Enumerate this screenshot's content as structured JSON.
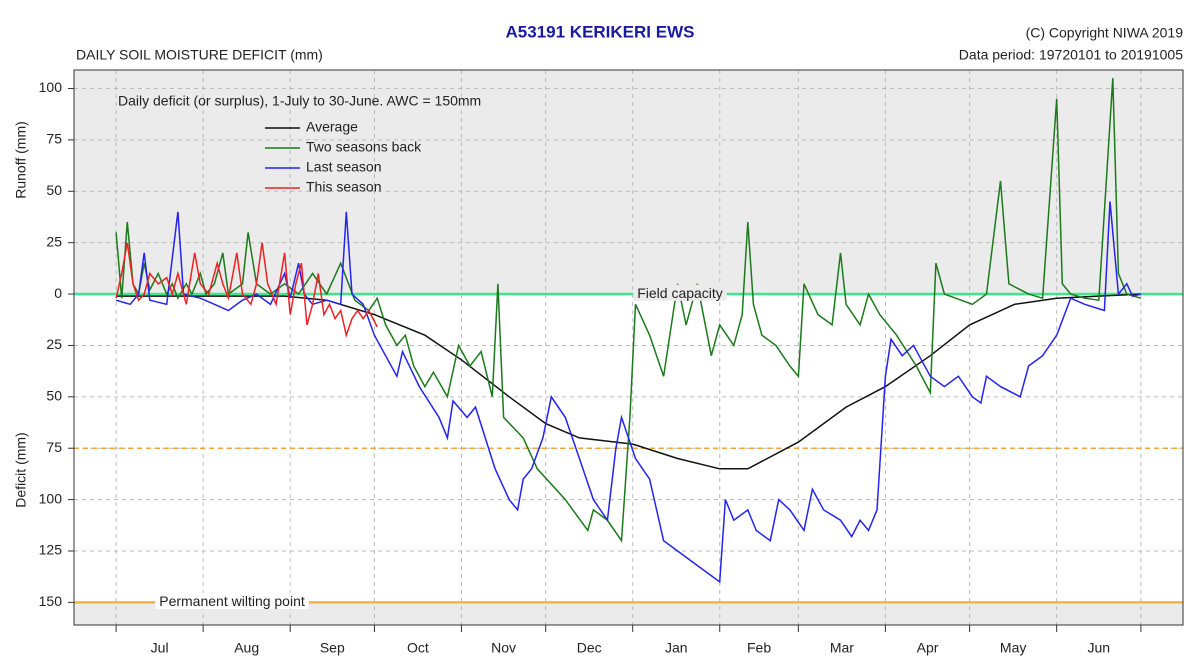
{
  "chart_data": {
    "type": "line",
    "title": "A53191  KERIKERI EWS",
    "subtitle": "DAILY SOIL MOISTURE DEFICIT (mm)",
    "copyright": "(C) Copyright NIWA  2019",
    "data_period": "Data period:  19720101  to  20191005",
    "annotation": "Daily deficit (or surplus), 1-July to 30-June.  AWC = 150mm",
    "y_label_upper": "Runoff (mm)",
    "y_label_lower": "Deficit (mm)",
    "legend": "upper left",
    "grid": true,
    "xlim": [
      -15,
      380
    ],
    "xticks": [
      0,
      31,
      62,
      92,
      123,
      153,
      184,
      215,
      243,
      274,
      304,
      335,
      365
    ],
    "categories": [
      "Jul",
      "Aug",
      "Sep",
      "Oct",
      "Nov",
      "Dec",
      "Jan",
      "Feb",
      "Mar",
      "Apr",
      "May",
      "Jun"
    ],
    "ylim": [
      -161,
      109
    ],
    "yticks": [
      100,
      75,
      50,
      25,
      0,
      {
        "value": -25,
        "label": "25"
      },
      {
        "value": -50,
        "label": "50"
      },
      {
        "value": -75,
        "label": "75"
      },
      {
        "value": -100,
        "label": "100"
      },
      {
        "value": -125,
        "label": "125"
      },
      {
        "value": -150,
        "label": "150"
      }
    ],
    "reference_lines": [
      {
        "value": 0,
        "label": "Field capacity",
        "color": "#3ee88a",
        "style": "solid"
      },
      {
        "value": -75,
        "color": "#f2a83a",
        "style": "dashed"
      },
      {
        "value": -150,
        "label": "Permanent wilting point",
        "color": "#f5b540",
        "style": "solid"
      }
    ],
    "series": [
      {
        "name": "Average",
        "color": "#111111",
        "x": [
          0,
          60,
          75,
          92,
          110,
          123,
          140,
          153,
          165,
          184,
          200,
          215,
          225,
          243,
          260,
          274,
          290,
          304,
          320,
          335,
          350,
          365
        ],
        "values": [
          -1,
          -1,
          -3,
          -10,
          -20,
          -32,
          -50,
          -63,
          -70,
          -73,
          -80,
          -85,
          -85,
          -72,
          -55,
          -45,
          -30,
          -15,
          -5,
          -2,
          -1,
          0
        ]
      },
      {
        "name": "Two seasons back",
        "color": "#1b7a1b",
        "x": [
          0,
          2,
          4,
          6,
          8,
          10,
          12,
          15,
          18,
          20,
          22,
          25,
          27,
          30,
          32,
          35,
          38,
          40,
          45,
          47,
          50,
          55,
          60,
          65,
          70,
          75,
          80,
          85,
          90,
          93,
          96,
          100,
          103,
          106,
          110,
          113,
          118,
          122,
          126,
          130,
          134,
          136,
          138,
          145,
          150,
          160,
          168,
          170,
          175,
          180,
          183,
          185,
          190,
          195,
          200,
          203,
          207,
          212,
          215,
          220,
          223,
          225,
          227,
          230,
          235,
          240,
          243,
          245,
          250,
          255,
          258,
          260,
          265,
          268,
          272,
          278,
          285,
          290,
          292,
          295,
          305,
          310,
          315,
          318,
          325,
          330,
          335,
          337,
          340,
          345,
          350,
          355,
          357,
          360,
          365
        ],
        "values": [
          30,
          -2,
          35,
          5,
          0,
          15,
          2,
          10,
          0,
          5,
          -2,
          5,
          0,
          10,
          0,
          5,
          20,
          0,
          5,
          30,
          5,
          0,
          5,
          0,
          10,
          0,
          15,
          -3,
          -8,
          -2,
          -15,
          -25,
          -20,
          -35,
          -45,
          -38,
          -50,
          -25,
          -35,
          -28,
          -50,
          5,
          -60,
          -70,
          -85,
          -100,
          -115,
          -105,
          -110,
          -120,
          -60,
          -5,
          -20,
          -40,
          5,
          -15,
          5,
          -30,
          -15,
          -25,
          -10,
          35,
          -5,
          -20,
          -25,
          -35,
          -40,
          5,
          -10,
          -15,
          20,
          -5,
          -15,
          0,
          -10,
          -20,
          -35,
          -48,
          15,
          0,
          -5,
          0,
          55,
          5,
          0,
          -2,
          95,
          5,
          0,
          -2,
          -3,
          105,
          10,
          0,
          -2
        ]
      },
      {
        "name": "Last season",
        "color": "#2424ee",
        "x": [
          0,
          5,
          8,
          10,
          12,
          18,
          22,
          24,
          30,
          35,
          40,
          45,
          50,
          55,
          60,
          62,
          65,
          67,
          70,
          75,
          80,
          82,
          84,
          88,
          92,
          96,
          100,
          102,
          108,
          115,
          118,
          120,
          125,
          128,
          135,
          140,
          143,
          145,
          148,
          152,
          155,
          160,
          165,
          170,
          175,
          178,
          180,
          185,
          190,
          195,
          200,
          210,
          215,
          217,
          220,
          225,
          228,
          233,
          236,
          240,
          245,
          248,
          252,
          258,
          262,
          265,
          268,
          271,
          274,
          276,
          280,
          284,
          290,
          295,
          300,
          305,
          308,
          310,
          315,
          322,
          325,
          330,
          335,
          340,
          345,
          352,
          354,
          357,
          360,
          362,
          365
        ],
        "values": [
          -3,
          -5,
          0,
          20,
          -3,
          -5,
          40,
          0,
          -2,
          -5,
          -8,
          -3,
          0,
          -5,
          10,
          -2,
          15,
          0,
          -5,
          -3,
          -5,
          40,
          0,
          -5,
          -20,
          -30,
          -40,
          -28,
          -45,
          -60,
          -70,
          -52,
          -60,
          -55,
          -85,
          -100,
          -105,
          -90,
          -85,
          -70,
          -50,
          -60,
          -80,
          -100,
          -110,
          -75,
          -60,
          -80,
          -90,
          -120,
          -125,
          -135,
          -140,
          -100,
          -110,
          -105,
          -115,
          -120,
          -100,
          -105,
          -115,
          -95,
          -105,
          -110,
          -118,
          -110,
          -115,
          -105,
          -40,
          -22,
          -30,
          -25,
          -40,
          -45,
          -40,
          -50,
          -53,
          -40,
          -45,
          -50,
          -35,
          -30,
          -20,
          -2,
          -5,
          -8,
          45,
          0,
          5,
          -1,
          0
        ]
      },
      {
        "name": "This season",
        "color": "#ee2222",
        "x": [
          0,
          2,
          4,
          6,
          8,
          10,
          12,
          15,
          18,
          20,
          22,
          25,
          28,
          30,
          33,
          36,
          38,
          40,
          43,
          45,
          48,
          50,
          52,
          54,
          57,
          60,
          62,
          64,
          66,
          68,
          70,
          72,
          74,
          76,
          78,
          80,
          82,
          84,
          86,
          88,
          90,
          93
        ],
        "values": [
          -2,
          10,
          25,
          5,
          -3,
          0,
          10,
          5,
          8,
          0,
          10,
          -5,
          20,
          5,
          0,
          15,
          5,
          -2,
          20,
          0,
          -5,
          5,
          25,
          5,
          -5,
          20,
          -10,
          5,
          15,
          -15,
          -5,
          10,
          -10,
          -5,
          -12,
          -8,
          -20,
          -12,
          -8,
          -12,
          -8,
          -16
        ]
      }
    ]
  }
}
